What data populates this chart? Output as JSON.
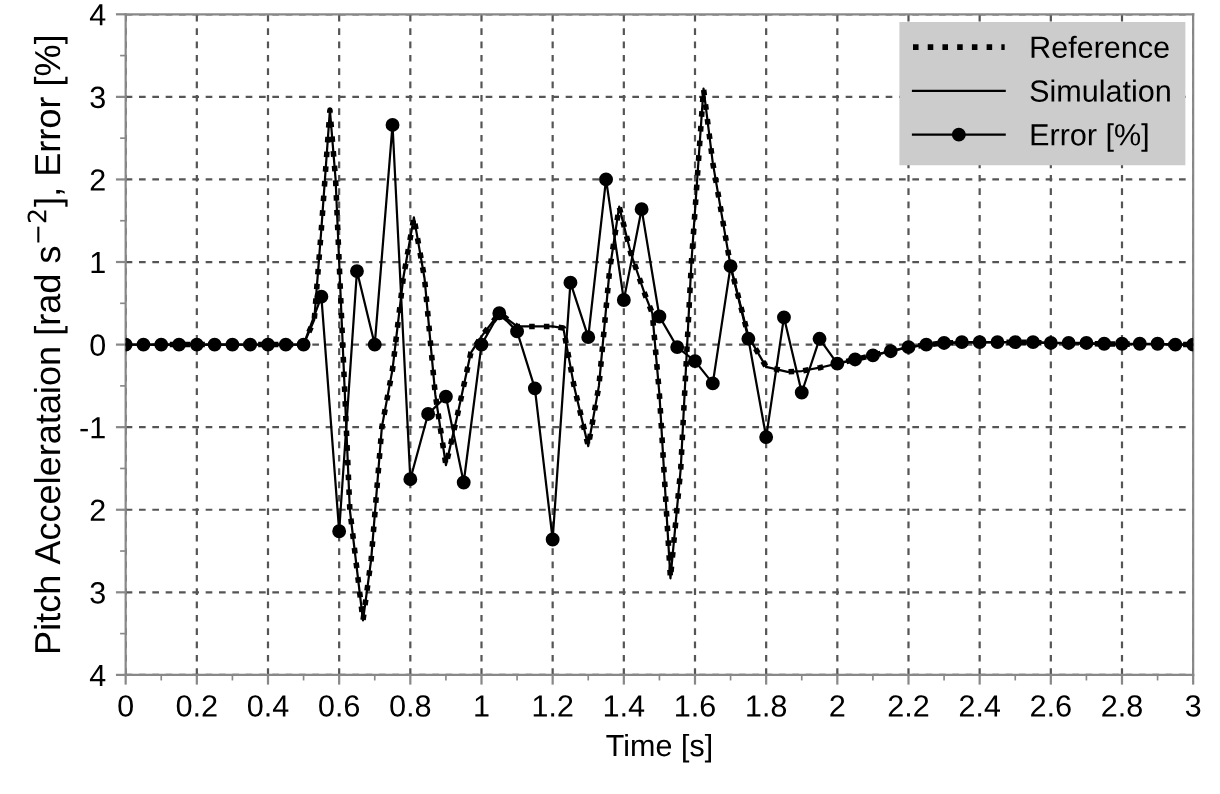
{
  "chart_data": {
    "type": "line",
    "xlabel": "Time [s]",
    "ylabel": "Pitch Accelerataion [rad s$^{−2}$], Error [%]",
    "xlim": [
      0,
      3
    ],
    "xticks": [
      0,
      0.2,
      0.4,
      0.6,
      0.8,
      1,
      1.2,
      1.4,
      1.6,
      1.8,
      2,
      2.2,
      2.4,
      2.6,
      2.8,
      3
    ],
    "ylim": [
      -4,
      4
    ],
    "yticks": [
      {
        "value": 4,
        "label": "4"
      },
      {
        "value": 3,
        "label": "3"
      },
      {
        "value": 2,
        "label": "2"
      },
      {
        "value": 1,
        "label": "1"
      },
      {
        "value": 0,
        "label": "0"
      },
      {
        "value": -1,
        "label": "-1"
      },
      {
        "value": -2,
        "label": "2"
      },
      {
        "value": -3,
        "label": "3"
      },
      {
        "value": -4,
        "label": "4"
      }
    ],
    "grid": true,
    "legend": "top right",
    "series": [
      {
        "name": "Reference",
        "color": "#000000",
        "line_style": "dotted",
        "marker": "none",
        "x": [
          0,
          0.5,
          0.53,
          0.55,
          0.574,
          0.59,
          0.61,
          0.63,
          0.667,
          0.69,
          0.72,
          0.75,
          0.78,
          0.81,
          0.84,
          0.87,
          0.9,
          0.93,
          0.97,
          1.0,
          1.05,
          1.1,
          1.2,
          1.23,
          1.26,
          1.3,
          1.33,
          1.36,
          1.387,
          1.42,
          1.46,
          1.48,
          1.5,
          1.531,
          1.56,
          1.59,
          1.624,
          1.65,
          1.7,
          1.75,
          1.8,
          1.86,
          1.9,
          1.95,
          2.0,
          2.1,
          2.2,
          2.3,
          2.5,
          2.7,
          3.0
        ],
        "values": [
          0,
          0,
          0.3,
          1.4,
          2.84,
          2.0,
          0,
          -2.0,
          -3.34,
          -2.6,
          -1.0,
          -0.3,
          0.8,
          1.54,
          0.8,
          -0.6,
          -1.46,
          -0.9,
          -0.1,
          0.1,
          0.38,
          0.22,
          0.22,
          0.2,
          -0.5,
          -1.23,
          -0.5,
          0.9,
          1.67,
          1.1,
          0.6,
          0.38,
          -0.6,
          -2.83,
          -1.5,
          1.0,
          3.1,
          2.2,
          0.95,
          0.1,
          -0.27,
          -0.33,
          -0.32,
          -0.28,
          -0.23,
          -0.13,
          -0.03,
          0.02,
          0.03,
          0.01,
          0
        ]
      },
      {
        "name": "Simulation",
        "color": "#000000",
        "line_style": "solid",
        "marker": "none",
        "x": [
          0,
          0.5,
          0.53,
          0.55,
          0.574,
          0.59,
          0.61,
          0.63,
          0.667,
          0.69,
          0.72,
          0.75,
          0.78,
          0.81,
          0.84,
          0.87,
          0.9,
          0.93,
          0.97,
          1.0,
          1.05,
          1.1,
          1.2,
          1.23,
          1.26,
          1.3,
          1.33,
          1.36,
          1.387,
          1.42,
          1.46,
          1.48,
          1.5,
          1.531,
          1.56,
          1.59,
          1.624,
          1.65,
          1.7,
          1.75,
          1.8,
          1.86,
          1.9,
          1.95,
          2.0,
          2.1,
          2.2,
          2.3,
          2.5,
          2.7,
          3.0
        ],
        "values": [
          0,
          0,
          0.3,
          1.4,
          2.84,
          2.0,
          0,
          -2.0,
          -3.34,
          -2.6,
          -1.0,
          -0.3,
          0.8,
          1.54,
          0.8,
          -0.6,
          -1.46,
          -0.9,
          -0.1,
          0.1,
          0.38,
          0.22,
          0.22,
          0.2,
          -0.5,
          -1.23,
          -0.5,
          0.9,
          1.67,
          1.1,
          0.6,
          0.38,
          -0.6,
          -2.83,
          -1.5,
          1.0,
          3.1,
          2.2,
          0.95,
          0.1,
          -0.27,
          -0.33,
          -0.32,
          -0.28,
          -0.23,
          -0.13,
          -0.03,
          0.02,
          0.03,
          0.01,
          0
        ]
      },
      {
        "name": "Error [%]",
        "color": "#000000",
        "line_style": "solid",
        "marker": "circle",
        "x": [
          0,
          0.05,
          0.1,
          0.15,
          0.2,
          0.25,
          0.3,
          0.35,
          0.4,
          0.45,
          0.5,
          0.55,
          0.6,
          0.65,
          0.7,
          0.75,
          0.8,
          0.85,
          0.9,
          0.95,
          1.0,
          1.05,
          1.1,
          1.15,
          1.2,
          1.25,
          1.3,
          1.35,
          1.4,
          1.45,
          1.5,
          1.55,
          1.6,
          1.65,
          1.7,
          1.75,
          1.8,
          1.85,
          1.9,
          1.95,
          2.0,
          2.05,
          2.1,
          2.15,
          2.2,
          2.25,
          2.3,
          2.35,
          2.4,
          2.45,
          2.5,
          2.55,
          2.6,
          2.65,
          2.7,
          2.75,
          2.8,
          2.85,
          2.9,
          2.95,
          3.0
        ],
        "values": [
          0,
          0,
          0,
          0,
          0,
          0,
          0,
          0,
          0,
          0,
          0,
          0.58,
          -2.26,
          0.89,
          0,
          2.66,
          -1.63,
          -0.84,
          -0.63,
          -1.67,
          0,
          0.38,
          0.16,
          -0.53,
          -2.36,
          0.75,
          0.09,
          2.0,
          0.54,
          1.64,
          0.34,
          -0.03,
          -0.2,
          -0.47,
          0.95,
          0.07,
          -1.12,
          0.33,
          -0.58,
          0.07,
          -0.23,
          -0.18,
          -0.13,
          -0.08,
          -0.03,
          0,
          0.02,
          0.03,
          0.03,
          0.03,
          0.03,
          0.03,
          0.02,
          0.02,
          0.02,
          0.01,
          0.01,
          0.01,
          0.01,
          0,
          0
        ]
      }
    ]
  }
}
